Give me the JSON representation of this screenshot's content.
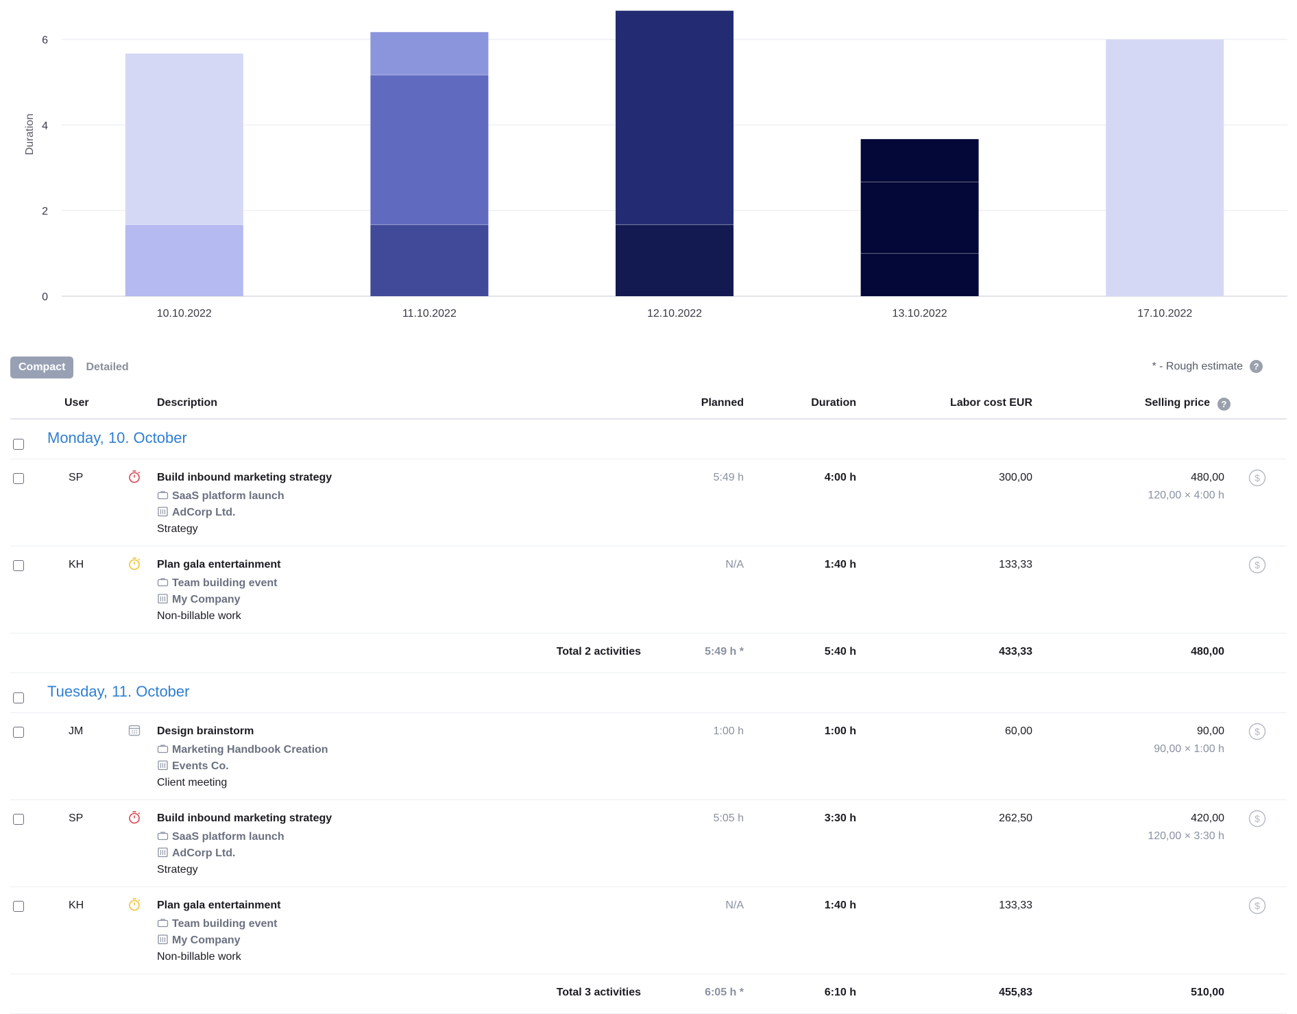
{
  "chart_data": {
    "type": "bar",
    "stacked": true,
    "title": "",
    "xlabel": "",
    "ylabel": "Duration",
    "ylim": [
      0,
      6.6
    ],
    "yticks": [
      0,
      2,
      4,
      6
    ],
    "grid": true,
    "categories": [
      "10.10.2022",
      "11.10.2022",
      "12.10.2022",
      "13.10.2022",
      "17.10.2022"
    ],
    "bars": [
      {
        "segments": [
          {
            "value": 1.67,
            "color": "#b5baf0"
          },
          {
            "value": 4.0,
            "color": "#d5d8f5"
          }
        ]
      },
      {
        "segments": [
          {
            "value": 1.67,
            "color": "#404a98"
          },
          {
            "value": 3.5,
            "color": "#606bc0"
          },
          {
            "value": 1.0,
            "color": "#8b95dc"
          }
        ]
      },
      {
        "segments": [
          {
            "value": 1.67,
            "color": "#131a52"
          },
          {
            "value": 5.0,
            "color": "#232c72"
          }
        ]
      },
      {
        "segments": [
          {
            "value": 1.0,
            "color": "#030838"
          },
          {
            "value": 1.67,
            "color": "#030838"
          },
          {
            "value": 1.0,
            "color": "#030838"
          }
        ]
      },
      {
        "segments": [
          {
            "value": 6.0,
            "color": "#d5d8f5"
          }
        ]
      }
    ]
  },
  "view": {
    "compact_label": "Compact",
    "detailed_label": "Detailed",
    "rough_estimate": "* - Rough estimate"
  },
  "table": {
    "headers": {
      "user": "User",
      "description": "Description",
      "planned": "Planned",
      "duration": "Duration",
      "labor": "Labor cost EUR",
      "selling": "Selling price"
    },
    "days": [
      {
        "title": "Monday, 10. October",
        "activities": [
          {
            "user": "SP",
            "icon": "stopwatch-red-icon",
            "title": "Build inbound marketing strategy",
            "project": "SaaS platform launch",
            "client": "AdCorp Ltd.",
            "category": "Strategy",
            "planned": "5:49 h",
            "duration": "4:00 h",
            "labor": "300,00",
            "selling": "480,00",
            "selling_detail": "120,00 × 4:00 h"
          },
          {
            "user": "KH",
            "icon": "stopwatch-yellow-icon",
            "title": "Plan gala entertainment",
            "project": "Team building event",
            "client": "My Company",
            "category": "Non-billable work",
            "planned": "N/A",
            "duration": "1:40 h",
            "labor": "133,33",
            "selling": "",
            "selling_detail": ""
          }
        ],
        "total": {
          "label": "Total 2 activities",
          "planned": "5:49 h *",
          "duration": "5:40 h",
          "labor": "433,33",
          "selling": "480,00"
        }
      },
      {
        "title": "Tuesday, 11. October",
        "activities": [
          {
            "user": "JM",
            "icon": "calendar-icon",
            "title": "Design brainstorm",
            "project": "Marketing Handbook Creation",
            "client": "Events Co.",
            "category": "Client meeting",
            "planned": "1:00 h",
            "duration": "1:00 h",
            "labor": "60,00",
            "selling": "90,00",
            "selling_detail": "90,00 × 1:00 h"
          },
          {
            "user": "SP",
            "icon": "stopwatch-red-icon",
            "title": "Build inbound marketing strategy",
            "project": "SaaS platform launch",
            "client": "AdCorp Ltd.",
            "category": "Strategy",
            "planned": "5:05 h",
            "duration": "3:30 h",
            "labor": "262,50",
            "selling": "420,00",
            "selling_detail": "120,00 × 3:30 h"
          },
          {
            "user": "KH",
            "icon": "stopwatch-yellow-icon",
            "title": "Plan gala entertainment",
            "project": "Team building event",
            "client": "My Company",
            "category": "Non-billable work",
            "planned": "N/A",
            "duration": "1:40 h",
            "labor": "133,33",
            "selling": "",
            "selling_detail": ""
          }
        ],
        "total": {
          "label": "Total 3 activities",
          "planned": "6:05 h *",
          "duration": "6:10 h",
          "labor": "455,83",
          "selling": "510,00"
        }
      }
    ]
  },
  "colors": {
    "accent_blue": "#2f7fd3",
    "stopwatch_red": "#d9434d",
    "stopwatch_yellow": "#f0c232",
    "muted": "#8a90a0"
  }
}
